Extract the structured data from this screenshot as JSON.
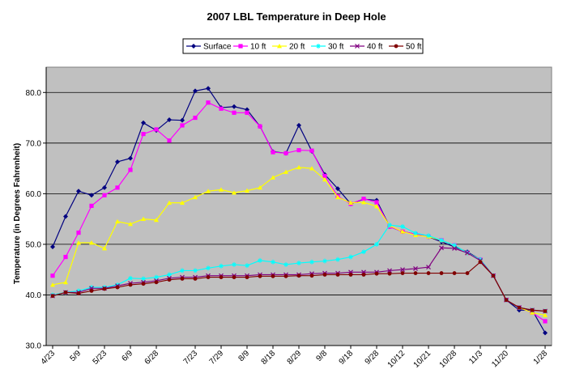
{
  "colors": {
    "plot_background": "#c0c0c0",
    "gridline": "#000000"
  },
  "chart_data": {
    "type": "line",
    "title": "2007 LBL Temperature in Deep Hole",
    "xlabel": "",
    "ylabel": "Temperature (in Degrees Fahrenheit)",
    "ylim": [
      30,
      85
    ],
    "yticks": [
      30,
      40,
      50,
      60,
      70,
      80
    ],
    "ytick_labels": [
      "30.0",
      "40.0",
      "50.0",
      "60.0",
      "70.0",
      "80.0"
    ],
    "grid": "horizontal",
    "legend_position": "top",
    "x_labels": [
      "4/23",
      "5/9",
      "5/23",
      "6/9",
      "6/28",
      "7/23",
      "7/29",
      "8/9",
      "8/18",
      "8/29",
      "9/8",
      "9/18",
      "9/28",
      "10/12",
      "10/21",
      "10/28",
      "11/3",
      "11/20",
      "1/28"
    ],
    "x": [
      "4/23",
      "4/30",
      "5/9",
      "5/16",
      "5/23",
      "5/30",
      "6/9",
      "6/16",
      "6/28",
      "7/5",
      "7/12",
      "7/23",
      "7/26",
      "7/29",
      "8/2",
      "8/9",
      "8/14",
      "8/18",
      "8/23",
      "8/29",
      "9/1",
      "9/8",
      "9/12",
      "9/18",
      "9/21",
      "9/28",
      "10/5",
      "10/12",
      "10/15",
      "10/21",
      "10/25",
      "10/28",
      "11/1",
      "11/3",
      "11/10",
      "11/20",
      "12/15",
      "1/10",
      "1/28"
    ],
    "series": [
      {
        "name": "Surface",
        "color": "#000080",
        "marker": "diamond",
        "values": [
          49.5,
          55.5,
          60.5,
          59.7,
          61.2,
          66.3,
          67.0,
          74.0,
          72.5,
          74.6,
          74.5,
          80.3,
          80.8,
          77.0,
          77.2,
          76.6,
          73.3,
          68.3,
          68.0,
          73.5,
          68.4,
          63.8,
          61.0,
          58.0,
          58.9,
          58.7,
          53.5,
          52.5,
          52.0,
          51.5,
          50.5,
          49.5,
          48.5,
          47.0,
          43.8,
          39.0,
          37.0,
          37.0,
          32.5
        ]
      },
      {
        "name": "10 ft",
        "color": "#ff00ff",
        "marker": "square",
        "values": [
          43.8,
          47.5,
          52.3,
          57.6,
          59.7,
          61.2,
          64.7,
          71.8,
          72.7,
          70.5,
          73.5,
          75.0,
          78.0,
          76.8,
          76.0,
          76.0,
          73.3,
          68.2,
          68.0,
          68.6,
          68.5,
          63.5,
          59.5,
          58.0,
          59.0,
          58.3,
          53.5,
          52.5,
          52.0,
          51.5,
          50.8,
          49.8,
          48.3,
          47.0,
          43.8,
          39.0,
          37.5,
          36.5,
          34.8
        ]
      },
      {
        "name": "20 ft",
        "color": "#ffff00",
        "marker": "triangle",
        "values": [
          42.0,
          42.5,
          50.3,
          50.3,
          49.2,
          54.5,
          54.0,
          55.0,
          54.8,
          58.2,
          58.2,
          59.3,
          60.5,
          60.8,
          60.2,
          60.6,
          61.2,
          63.2,
          64.3,
          65.2,
          65.0,
          62.8,
          59.3,
          58.2,
          58.3,
          57.5,
          53.7,
          52.5,
          51.8,
          51.5,
          50.8,
          49.8,
          48.3,
          47.0,
          43.8,
          39.0,
          37.5,
          36.5,
          36.0
        ]
      },
      {
        "name": "30 ft",
        "color": "#00ffff",
        "marker": "star",
        "values": [
          40.0,
          40.5,
          40.8,
          41.5,
          41.5,
          42.0,
          43.3,
          43.2,
          43.5,
          44.0,
          44.8,
          44.8,
          45.3,
          45.7,
          46.0,
          45.8,
          46.8,
          46.5,
          46.0,
          46.3,
          46.5,
          46.7,
          47.0,
          47.5,
          48.5,
          50.0,
          53.8,
          53.5,
          52.2,
          51.7,
          50.8,
          49.8,
          48.3,
          47.0,
          43.8,
          39.0,
          37.5,
          37.0,
          36.8
        ]
      },
      {
        "name": "40 ft",
        "color": "#800080",
        "marker": "x",
        "values": [
          39.8,
          40.5,
          40.5,
          41.3,
          41.3,
          41.8,
          42.3,
          42.5,
          42.8,
          43.3,
          43.5,
          43.5,
          43.8,
          43.8,
          43.8,
          43.8,
          44.0,
          44.0,
          44.0,
          44.0,
          44.2,
          44.3,
          44.3,
          44.5,
          44.5,
          44.5,
          44.8,
          45.0,
          45.2,
          45.5,
          49.3,
          49.2,
          48.3,
          46.8,
          43.8,
          39.0,
          37.5,
          37.0,
          36.8
        ]
      },
      {
        "name": "50 ft",
        "color": "#800000",
        "marker": "circle",
        "values": [
          39.8,
          40.5,
          40.3,
          40.8,
          41.2,
          41.5,
          42.0,
          42.2,
          42.5,
          43.0,
          43.2,
          43.2,
          43.5,
          43.5,
          43.5,
          43.5,
          43.7,
          43.7,
          43.7,
          43.8,
          43.8,
          44.0,
          44.0,
          44.0,
          44.0,
          44.2,
          44.2,
          44.3,
          44.3,
          44.3,
          44.3,
          44.3,
          44.3,
          46.5,
          43.8,
          39.0,
          37.5,
          37.0,
          36.8
        ]
      }
    ]
  }
}
